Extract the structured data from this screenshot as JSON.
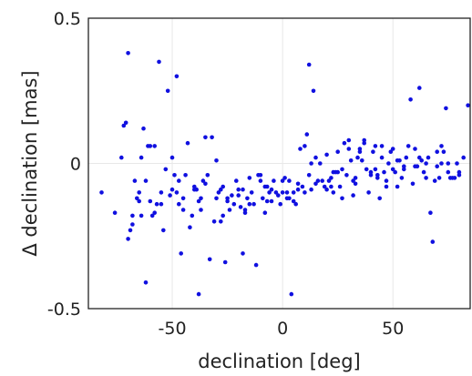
{
  "chart_data": {
    "type": "scatter",
    "xlabel": "declination [deg]",
    "ylabel": "Δ declination [mas]",
    "xlim": [
      -88,
      85
    ],
    "ylim": [
      -0.5,
      0.5
    ],
    "x_ticks": [
      -50,
      0,
      50
    ],
    "x_tick_labels": [
      "-50",
      "0",
      "50"
    ],
    "y_ticks": [
      -0.5,
      0,
      0.5
    ],
    "y_tick_labels": [
      "-0.5",
      "0",
      "0.5"
    ],
    "grid": true,
    "point_color": "#1010e0",
    "grid_color": "#e8e8e8",
    "series": [
      {
        "x": [
          -82,
          -76,
          -72,
          -70,
          -70,
          -68,
          -66,
          -64,
          -64,
          -62,
          -60,
          -58,
          -56,
          -55,
          -54,
          -52,
          -50,
          -48,
          -47,
          -46,
          -44,
          -42,
          -41,
          -40,
          -38,
          -36,
          -35,
          -33,
          -32,
          -30,
          -28,
          -26,
          -24,
          -22,
          -20,
          -18,
          -16,
          -14,
          -12,
          -10,
          -8,
          -6,
          -4,
          -2,
          0,
          2,
          4,
          6,
          8,
          10,
          12,
          14,
          16,
          18,
          20,
          22,
          24,
          26,
          28,
          30,
          32,
          34,
          36,
          38,
          40,
          42,
          44,
          46,
          48,
          50,
          52,
          54,
          56,
          58,
          60,
          62,
          64,
          66,
          68,
          70,
          72,
          74,
          76,
          78,
          80,
          82,
          84,
          -73,
          -71,
          -69,
          -67,
          -65,
          -63,
          -61,
          -59,
          -57,
          -53,
          -51,
          -49,
          -45,
          -43,
          -39,
          -37,
          -34,
          -31,
          -29,
          -27,
          -25,
          -23,
          -21,
          -19,
          -17,
          -15,
          -13,
          -11,
          -9,
          -7,
          -5,
          -3,
          -1,
          1,
          3,
          5,
          7,
          9,
          11,
          13,
          15,
          17,
          19,
          21,
          23,
          25,
          27,
          29,
          31,
          33,
          35,
          37,
          39,
          41,
          43,
          45,
          47,
          49,
          51,
          53,
          55,
          57,
          59,
          61,
          63,
          65,
          67,
          69,
          71,
          73,
          75,
          77,
          79,
          -68,
          -58,
          -48,
          -38,
          -28,
          -18,
          -8,
          2,
          12,
          22,
          32,
          42,
          52,
          62,
          72,
          -65,
          -55,
          -45,
          -35,
          -25,
          -15,
          -5,
          5,
          15,
          25,
          35,
          45,
          55,
          65,
          75,
          -60,
          -40,
          -20,
          0,
          20,
          40,
          60,
          80,
          -30,
          10,
          30,
          50,
          -10,
          -50,
          70,
          -47,
          -37,
          -27,
          -17,
          -7,
          3,
          13,
          23,
          33,
          43,
          -62,
          7,
          27,
          37,
          47
        ],
        "y": [
          -0.1,
          -0.17,
          0.13,
          0.38,
          -0.26,
          -0.21,
          -0.12,
          -0.18,
          0.02,
          -0.41,
          -0.13,
          0.06,
          0.35,
          -0.1,
          -0.23,
          0.25,
          0.02,
          0.3,
          -0.14,
          -0.31,
          -0.04,
          -0.22,
          -0.18,
          -0.09,
          -0.45,
          -0.06,
          0.09,
          -0.33,
          0.09,
          -0.12,
          -0.09,
          -0.34,
          -0.16,
          -0.14,
          -0.09,
          -0.31,
          -0.12,
          -0.1,
          -0.35,
          -0.06,
          -0.08,
          -0.1,
          -0.06,
          -0.11,
          -0.1,
          -0.1,
          -0.45,
          -0.14,
          0.05,
          -0.1,
          0.34,
          0.25,
          -0.06,
          -0.06,
          0.03,
          -0.05,
          -0.03,
          -0.08,
          0.07,
          0.05,
          -0.11,
          0.02,
          0.01,
          -0.02,
          -0.04,
          0.06,
          -0.12,
          -0.03,
          0.0,
          -0.02,
          0.01,
          -0.05,
          0.02,
          0.22,
          0.05,
          0.26,
          -0.03,
          0.02,
          -0.27,
          -0.01,
          0.06,
          0.19,
          -0.05,
          -0.05,
          -0.03,
          0.02,
          0.2,
          0.02,
          0.14,
          -0.23,
          -0.06,
          -0.13,
          0.12,
          0.06,
          -0.18,
          -0.14,
          -0.02,
          -0.11,
          -0.04,
          -0.12,
          0.07,
          -0.09,
          -0.16,
          -0.04,
          -0.2,
          -0.1,
          -0.18,
          -0.13,
          -0.11,
          -0.06,
          -0.15,
          -0.17,
          -0.05,
          -0.14,
          -0.04,
          -0.12,
          -0.08,
          -0.13,
          -0.1,
          -0.14,
          -0.05,
          -0.12,
          -0.13,
          -0.09,
          -0.08,
          0.1,
          -0.09,
          -0.07,
          0.0,
          -0.08,
          -0.06,
          -0.03,
          0.04,
          -0.02,
          -0.04,
          0.01,
          -0.07,
          0.05,
          0.07,
          -0.1,
          0.04,
          -0.04,
          0.06,
          -0.06,
          0.04,
          -0.03,
          0.01,
          -0.02,
          0.06,
          -0.07,
          -0.01,
          0.01,
          -0.05,
          -0.17,
          -0.06,
          -0.05,
          0.04,
          0.0,
          -0.05,
          0.0,
          -0.18,
          -0.17,
          -0.1,
          -0.13,
          -0.2,
          -0.09,
          -0.17,
          -0.12,
          -0.04,
          -0.08,
          -0.06,
          -0.02,
          -0.08,
          0.02,
          0.0,
          -0.1,
          -0.14,
          -0.16,
          -0.07,
          -0.12,
          -0.14,
          -0.09,
          -0.1,
          0.02,
          -0.03,
          0.04,
          0.02,
          -0.01,
          0.0,
          -0.03,
          0.06,
          -0.08,
          -0.11,
          -0.06,
          -0.09,
          -0.03,
          -0.01,
          -0.04,
          0.01,
          0.06,
          0.08,
          0.05,
          -0.04,
          -0.09,
          0.04,
          -0.06,
          -0.12,
          -0.08,
          -0.16,
          -0.13,
          -0.06,
          0.0,
          -0.1,
          -0.05,
          -0.05,
          -0.06,
          -0.07,
          -0.12,
          0.08,
          -0.08
        ]
      }
    ]
  }
}
